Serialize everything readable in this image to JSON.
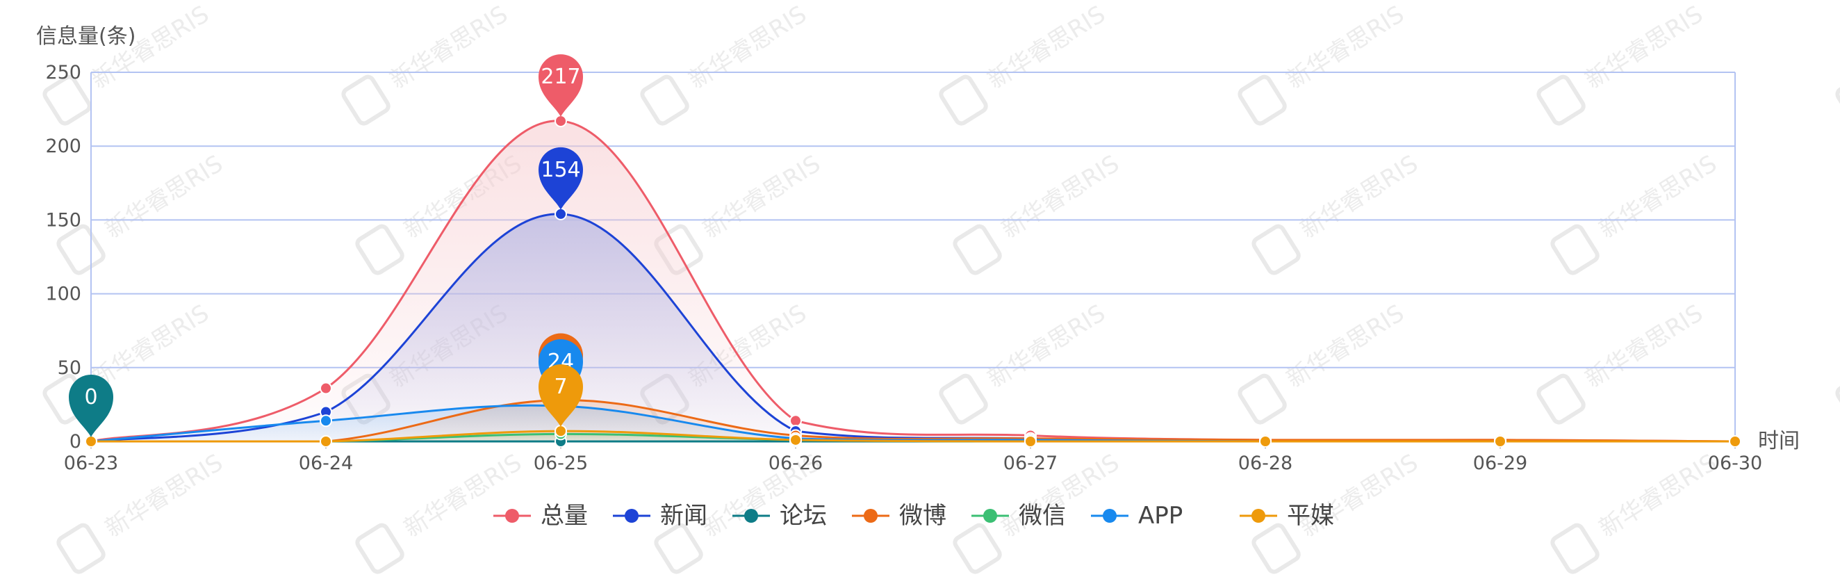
{
  "chart_data": {
    "type": "area",
    "ylabel": "信息量(条)",
    "xlabel": "时间",
    "ylim": [
      0,
      250
    ],
    "yticks": [
      0,
      50,
      100,
      150,
      200,
      250
    ],
    "categories": [
      "06-23",
      "06-24",
      "06-25",
      "06-26",
      "06-27",
      "06-28",
      "06-29",
      "06-30"
    ],
    "grid": true,
    "legend_position": "bottom-center",
    "series": [
      {
        "name": "总量",
        "color": "#ee5c69",
        "values": [
          0,
          36,
          217,
          14,
          4,
          1,
          1,
          0
        ],
        "max_label": "217"
      },
      {
        "name": "新闻",
        "color": "#1d43d6",
        "values": [
          0,
          20,
          154,
          7,
          2,
          0,
          0,
          0
        ],
        "max_label": "154"
      },
      {
        "name": "论坛",
        "color": "#0e7c87",
        "values": [
          0,
          0,
          0,
          0,
          0,
          0,
          0,
          0
        ],
        "max_label": "0"
      },
      {
        "name": "微博",
        "color": "#ec6a16",
        "values": [
          0,
          0,
          28,
          4,
          2,
          1,
          1,
          0
        ],
        "max_label": ""
      },
      {
        "name": "微信",
        "color": "#3bbf73",
        "values": [
          0,
          0,
          5,
          1,
          0,
          0,
          0,
          0
        ],
        "max_label": ""
      },
      {
        "name": "APP",
        "color": "#1889ee",
        "values": [
          0,
          14,
          24,
          2,
          1,
          0,
          0,
          0
        ],
        "max_label": "24"
      },
      {
        "name": "平媒",
        "color": "#ee9a0b",
        "values": [
          0,
          0,
          7,
          1,
          0,
          0,
          0,
          0
        ],
        "max_label": "7"
      }
    ],
    "watermark": "新华睿思RIS"
  }
}
